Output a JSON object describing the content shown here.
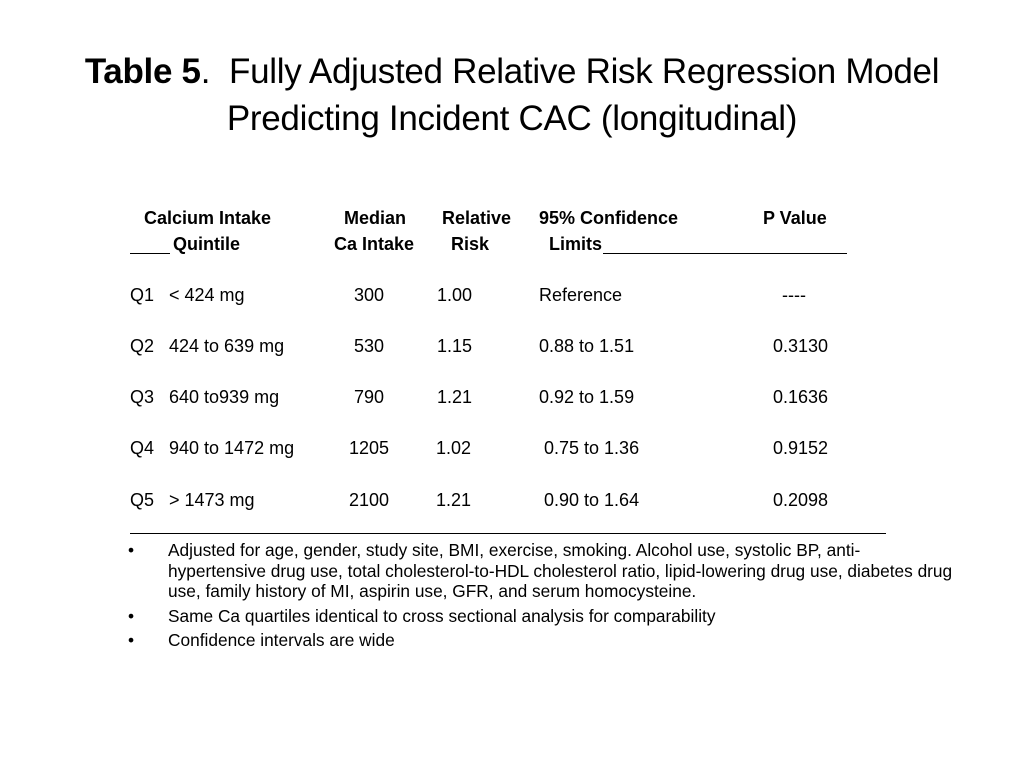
{
  "title": {
    "label": "Table 5",
    "separator": ".",
    "line1_rest": "Fully Adjusted Relative Risk Regression Model",
    "line2": "Predicting Incident CAC (longitudinal)"
  },
  "table": {
    "headers": {
      "calcium_line1": "Calcium Intake",
      "calcium_line2": "Quintile",
      "median_line1": "Median",
      "median_line2": "Ca Intake",
      "rr_line1": "Relative",
      "rr_line2": "Risk",
      "ci_line1": "95% Confidence",
      "ci_line2": "Limits",
      "p_line1": "P Value"
    },
    "rows": [
      {
        "quintile": "Q1",
        "intake": "< 424 mg",
        "median": "300",
        "rr": "1.00",
        "ci": "Reference",
        "p": "----"
      },
      {
        "quintile": "Q2",
        "intake": "424 to 639 mg",
        "median": "530",
        "rr": "1.15",
        "ci": "0.88 to 1.51",
        "p": "0.3130"
      },
      {
        "quintile": "Q3",
        "intake": "640 to939 mg",
        "median": "790",
        "rr": "1.21",
        "ci": "0.92 to 1.59",
        "p": "0.1636"
      },
      {
        "quintile": "Q4",
        "intake": "940 to 1472 mg",
        "median": "1205",
        "rr": "1.02",
        "ci": "0.75 to 1.36",
        "p": "0.9152"
      },
      {
        "quintile": "Q5",
        "intake": "> 1473 mg",
        "median": "2100",
        "rr": "1.21",
        "ci": "0.90 to 1.64",
        "p": "0.2098"
      }
    ]
  },
  "notes": {
    "bullet": "•",
    "items": [
      "Adjusted for age, gender, study site, BMI, exercise, smoking. Alcohol use, systolic BP, anti-hypertensive drug use, total cholesterol-to-HDL cholesterol ratio, lipid-lowering drug use, diabetes drug use, family history of MI, aspirin use, GFR, and serum homocysteine.",
      "Same Ca quartiles identical to cross sectional analysis for comparability",
      "Confidence intervals are wide"
    ]
  }
}
